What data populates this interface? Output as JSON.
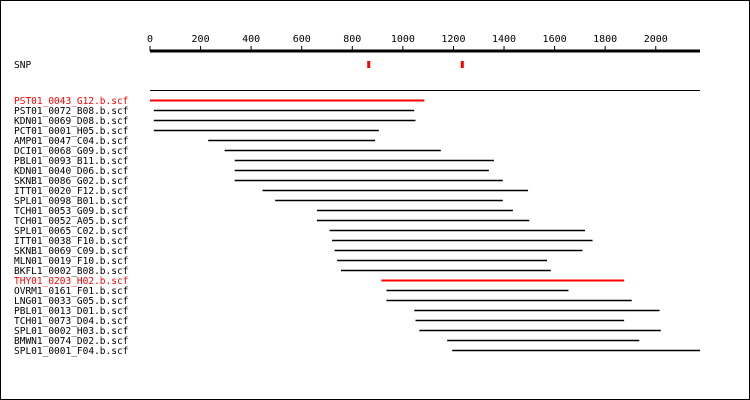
{
  "chart_data": {
    "type": "bar",
    "axis": {
      "min": 0,
      "max": 2175,
      "ticks": [
        0,
        200,
        400,
        600,
        800,
        1000,
        1200,
        1400,
        1600,
        1800,
        2000
      ],
      "tick_labels": [
        "0",
        "200",
        "400",
        "600",
        "800",
        "1000",
        "1200",
        "1400",
        "1600",
        "1800",
        "2000"
      ]
    },
    "snp": {
      "label": "SNP",
      "positions": [
        865,
        1235
      ],
      "color": "#ff0000"
    },
    "reads": [
      {
        "name": "PST01_0043_G12.b.scf",
        "start": 0,
        "end": 1085,
        "highlight": true
      },
      {
        "name": "PST01_0072_B08.b.scf",
        "start": 15,
        "end": 1045,
        "highlight": false
      },
      {
        "name": "KDN01_0069_D08.b.scf",
        "start": 15,
        "end": 1050,
        "highlight": false
      },
      {
        "name": "PCT01_0001_H05.b.scf",
        "start": 15,
        "end": 905,
        "highlight": false
      },
      {
        "name": "AMP01_0047_C04.b.scf",
        "start": 230,
        "end": 890,
        "highlight": false
      },
      {
        "name": "DCI01_0068_G09.b.scf",
        "start": 295,
        "end": 1150,
        "highlight": false
      },
      {
        "name": "PBL01_0093_B11.b.scf",
        "start": 335,
        "end": 1360,
        "highlight": false
      },
      {
        "name": "KDN01_0040_D06.b.scf",
        "start": 335,
        "end": 1340,
        "highlight": false
      },
      {
        "name": "SKNB1_0086_G02.b.scf",
        "start": 335,
        "end": 1395,
        "highlight": false
      },
      {
        "name": "ITT01_0020_F12.b.scf",
        "start": 445,
        "end": 1495,
        "highlight": false
      },
      {
        "name": "SPL01_0098_B01.b.scf",
        "start": 495,
        "end": 1395,
        "highlight": false
      },
      {
        "name": "TCH01_0053_G09.b.scf",
        "start": 660,
        "end": 1435,
        "highlight": false
      },
      {
        "name": "TCH01_0052_A05.b.scf",
        "start": 660,
        "end": 1500,
        "highlight": false
      },
      {
        "name": "SPL01_0065_C02.b.scf",
        "start": 710,
        "end": 1720,
        "highlight": false
      },
      {
        "name": "ITT01_0038_F10.b.scf",
        "start": 720,
        "end": 1750,
        "highlight": false
      },
      {
        "name": "SKNB1_0069_C09.b.scf",
        "start": 730,
        "end": 1710,
        "highlight": false
      },
      {
        "name": "MLN01_0019_F10.b.scf",
        "start": 740,
        "end": 1570,
        "highlight": false
      },
      {
        "name": "BKFL1_0002_B08.b.scf",
        "start": 755,
        "end": 1585,
        "highlight": false
      },
      {
        "name": "THY01_0203_H02.b.scf",
        "start": 915,
        "end": 1875,
        "highlight": true
      },
      {
        "name": "OVRM1_0161_F01.b.scf",
        "start": 935,
        "end": 1655,
        "highlight": false
      },
      {
        "name": "LNG01_0033_G05.b.scf",
        "start": 935,
        "end": 1905,
        "highlight": false
      },
      {
        "name": "PBL01_0013_D01.b.scf",
        "start": 1045,
        "end": 2015,
        "highlight": false
      },
      {
        "name": "TCH01_0073_D04.b.scf",
        "start": 1050,
        "end": 1875,
        "highlight": false
      },
      {
        "name": "SPL01_0002_H03.b.scf",
        "start": 1065,
        "end": 2020,
        "highlight": false
      },
      {
        "name": "BMWN1_0074_D02.b.scf",
        "start": 1175,
        "end": 1935,
        "highlight": false
      },
      {
        "name": "SPL01_0001_F04.b.scf",
        "start": 1195,
        "end": 2175,
        "highlight": false
      }
    ],
    "colors": {
      "normal": "#000000",
      "highlight": "#ff0000"
    }
  }
}
